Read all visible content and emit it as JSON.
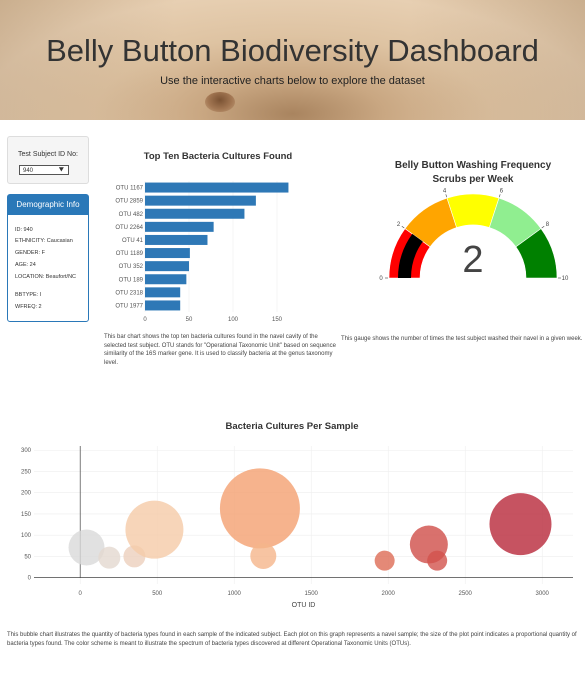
{
  "header": {
    "title": "Belly Button Biodiversity Dashboard",
    "subtitle": "Use the interactive charts below to explore the dataset"
  },
  "selector": {
    "label": "Test Subject ID No:",
    "value": "940"
  },
  "demographic": {
    "title": "Demographic Info",
    "rows": [
      "ID: 940",
      "ETHNICITY: Caucasian",
      "GENDER: F",
      "AGE: 24",
      "LOCATION: Beaufort/NC",
      "BBTYPE: I",
      "WFREQ: 2"
    ]
  },
  "bar_caption": "This bar chart shows the top ten bacteria cultures found in the navel cavity of the selected test subject. OTU stands for \"Operational Taxonomic Unit\" based on sequence similarity of the 16S marker gene. It is used to classify bacteria at the genus taxonomy level.",
  "gauge_caption": "This gauge shows the number of times the test subject washed their navel in a given week.",
  "bubble_caption": "This bubble chart illustrates the quantity of bacteria types found in each sample of the indicated subject. Each plot on this graph represents a navel sample; the size of the plot point indicates a proportional quantity of bacteria types found. The color scheme is meant to illustrate the spectrum of bacteria types discovered at different Operational Taxonomic Units (OTUs).",
  "chart_data": [
    {
      "type": "bar",
      "orientation": "horizontal",
      "title": "Top Ten Bacteria Cultures Found",
      "categories": [
        "OTU 1167",
        "OTU 2859",
        "OTU 482",
        "OTU 2264",
        "OTU 41",
        "OTU 1189",
        "OTU 352",
        "OTU 189",
        "OTU 2318",
        "OTU 1977"
      ],
      "values": [
        163,
        126,
        113,
        78,
        71,
        51,
        50,
        47,
        40,
        40
      ],
      "xlim": [
        0,
        175
      ],
      "xticks": [
        0,
        50,
        100,
        150
      ],
      "color": "#2e78b6"
    },
    {
      "type": "gauge",
      "title": "Belly Button Washing Frequency",
      "subtitle": "Scrubs per Week",
      "value": 2,
      "range": [
        0,
        10
      ],
      "tick_labels": [
        0,
        2,
        4,
        6,
        8,
        10
      ],
      "bands": [
        {
          "from": 0,
          "to": 2,
          "color": "#ff0000"
        },
        {
          "from": 2,
          "to": 4,
          "color": "#ffa500"
        },
        {
          "from": 4,
          "to": 6,
          "color": "#ffff00"
        },
        {
          "from": 6,
          "to": 8,
          "color": "#90ee90"
        },
        {
          "from": 8,
          "to": 10,
          "color": "#008000"
        }
      ],
      "bar_color": "#000000"
    },
    {
      "type": "scatter",
      "title": "Bacteria Cultures Per Sample",
      "xlabel": "OTU ID",
      "xlim": [
        -300,
        3200
      ],
      "ylim": [
        -15,
        310
      ],
      "xticks": [
        0,
        500,
        1000,
        1500,
        2000,
        2500,
        3000
      ],
      "yticks": [
        0,
        50,
        100,
        150,
        200,
        250,
        300
      ],
      "points": [
        {
          "x": 41,
          "y": 71,
          "r": 18,
          "color": "#d9d9d9"
        },
        {
          "x": 189,
          "y": 47,
          "r": 11,
          "color": "#e3d8d0"
        },
        {
          "x": 352,
          "y": 50,
          "r": 11,
          "color": "#ecd0bd"
        },
        {
          "x": 482,
          "y": 113,
          "r": 29,
          "color": "#f5caa8"
        },
        {
          "x": 1167,
          "y": 163,
          "r": 40,
          "color": "#f4a070"
        },
        {
          "x": 1189,
          "y": 51,
          "r": 13,
          "color": "#f5b58b"
        },
        {
          "x": 1977,
          "y": 40,
          "r": 10,
          "color": "#dd6b55"
        },
        {
          "x": 2264,
          "y": 78,
          "r": 19,
          "color": "#cf4e48"
        },
        {
          "x": 2318,
          "y": 40,
          "r": 10,
          "color": "#d2524c"
        },
        {
          "x": 2859,
          "y": 126,
          "r": 31,
          "color": "#b8283a"
        }
      ]
    }
  ]
}
